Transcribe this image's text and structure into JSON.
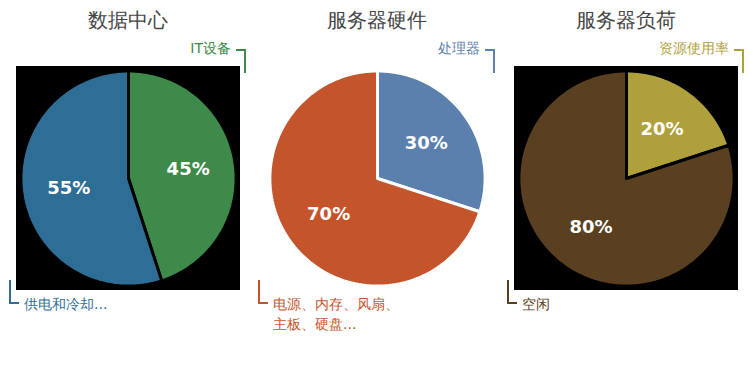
{
  "chart_data": [
    {
      "type": "pie",
      "title": "数据中心",
      "categories": [
        "IT设备",
        "供电和冷却..."
      ],
      "values": [
        45,
        55
      ],
      "value_labels": [
        "45%",
        "55%"
      ],
      "colors": [
        "#3d8a4a",
        "#2e6e96"
      ],
      "data_labels": true
    },
    {
      "type": "pie",
      "title": "服务器硬件",
      "categories": [
        "处理器",
        "电源、内存、风扇、主板、硬盘..."
      ],
      "values": [
        30,
        70
      ],
      "value_labels": [
        "30%",
        "70%"
      ],
      "colors": [
        "#5b80ad",
        "#c4542c"
      ],
      "data_labels": true
    },
    {
      "type": "pie",
      "title": "服务器负荷",
      "categories": [
        "资源使用率",
        "空闲"
      ],
      "values": [
        20,
        80
      ],
      "value_labels": [
        "20%",
        "80%"
      ],
      "colors": [
        "#b0a03c",
        "#5a4020"
      ],
      "data_labels": true
    }
  ]
}
